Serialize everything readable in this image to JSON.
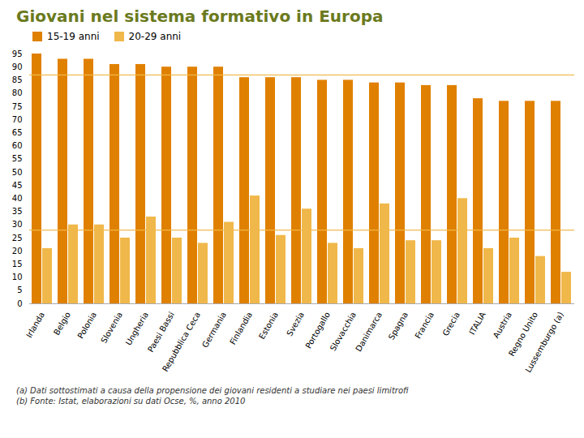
{
  "chart_data": {
    "type": "bar",
    "title": "Giovani nel sistema formativo in Europa",
    "title_color": "#6b7a1e",
    "categories": [
      "Irlanda",
      "Belgio",
      "Polonia",
      "Slovenia",
      "Ungheria",
      "Paesi Bassi",
      "Repubblica Ceca",
      "Germania",
      "Finlandia",
      "Estonia",
      "Svezia",
      "Portogallo",
      "Slovacchia",
      "Danimarca",
      "Spagna",
      "Francia",
      "Grecia",
      "ITALIA",
      "Austria",
      "Regno Unito",
      "Lussemburgo (a)"
    ],
    "series": [
      {
        "name": "15-19 anni",
        "color": "#e08000",
        "values": [
          95,
          93,
          93,
          91,
          91,
          90,
          90,
          90,
          86,
          86,
          86,
          85,
          85,
          84,
          84,
          83,
          83,
          78,
          77,
          77,
          77
        ]
      },
      {
        "name": "20-29 anni",
        "color": "#f0b84a",
        "values": [
          21,
          30,
          30,
          25,
          33,
          25,
          23,
          31,
          41,
          26,
          36,
          23,
          21,
          38,
          24,
          24,
          40,
          21,
          25,
          18,
          12
        ]
      }
    ],
    "hlines": [
      {
        "value": 87,
        "color": "#f0b84a"
      },
      {
        "value": 28,
        "color": "#f0b84a"
      }
    ],
    "ylim": [
      0,
      95
    ],
    "yticks": [
      0,
      5,
      10,
      15,
      20,
      25,
      30,
      35,
      40,
      45,
      50,
      55,
      60,
      65,
      70,
      75,
      80,
      85,
      90,
      95
    ],
    "grid": false,
    "legend": "top",
    "annotations": [
      "(a) Dati sottostimati a causa della propensione dei giovani residenti a studiare nei paesi limitrofi",
      "(b) Fonte: Istat, elaborazioni su dati Ocse, %, anno 2010"
    ]
  }
}
